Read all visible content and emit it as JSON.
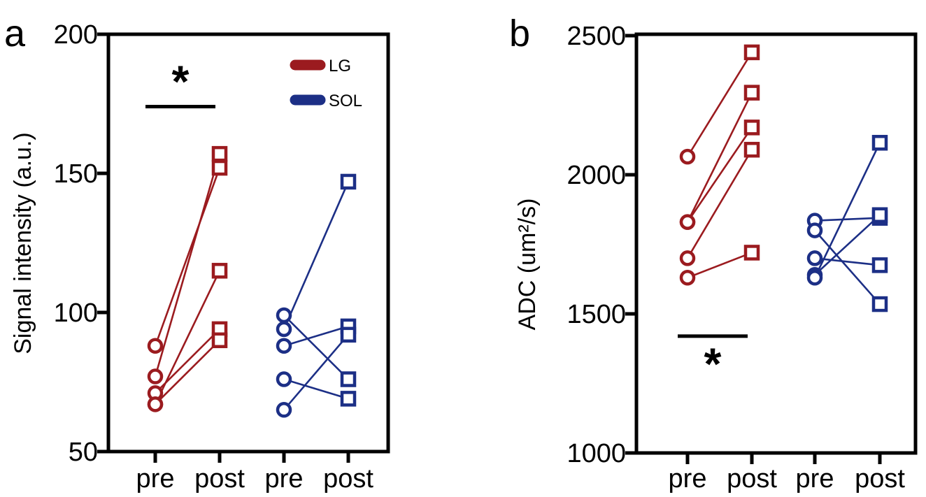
{
  "colors": {
    "LG": "#9b1b1f",
    "SOL": "#1c2f86",
    "axis": "#000000"
  },
  "chart_data": [
    {
      "type": "scatter",
      "panel": "a",
      "title": "",
      "xlabel": "",
      "ylabel": "Signal intensity (a.u.)",
      "ylim": [
        50,
        200
      ],
      "yticks": [
        50,
        100,
        150,
        200
      ],
      "categories": [
        "pre",
        "post",
        "pre",
        "post"
      ],
      "series": [
        {
          "name": "LG",
          "color_key": "LG",
          "pairs": [
            [
              88,
              152
            ],
            [
              77,
              157
            ],
            [
              71,
              94
            ],
            [
              67,
              115
            ],
            [
              67,
              90
            ]
          ]
        },
        {
          "name": "SOL",
          "color_key": "SOL",
          "pairs": [
            [
              99,
              76
            ],
            [
              94,
              147
            ],
            [
              88,
              95
            ],
            [
              76,
              69
            ],
            [
              65,
              92
            ]
          ]
        }
      ],
      "significance": {
        "label": "*",
        "position": "above",
        "between": [
          "LG pre",
          "LG post"
        ],
        "bar_value": 174,
        "star_value": 183
      },
      "legend": {
        "placement": "top-right",
        "entries": [
          "LG",
          "SOL"
        ]
      }
    },
    {
      "type": "scatter",
      "panel": "b",
      "title": "",
      "xlabel": "",
      "ylabel": "ADC (um²/s)",
      "ylim": [
        1000,
        2500
      ],
      "yticks": [
        1000,
        1500,
        2000,
        2500
      ],
      "categories": [
        "pre",
        "post",
        "pre",
        "post"
      ],
      "series": [
        {
          "name": "LG",
          "color_key": "LG",
          "pairs": [
            [
              2065,
              2440
            ],
            [
              1830,
              2295
            ],
            [
              1830,
              2170
            ],
            [
              1700,
              2090
            ],
            [
              1630,
              1720
            ]
          ]
        },
        {
          "name": "SOL",
          "color_key": "SOL",
          "pairs": [
            [
              1835,
              1845
            ],
            [
              1800,
              1535
            ],
            [
              1700,
              1675
            ],
            [
              1640,
              1855
            ],
            [
              1630,
              2115
            ]
          ]
        }
      ],
      "significance": {
        "label": "*",
        "position": "below",
        "between": [
          "LG pre",
          "LG post"
        ],
        "bar_value": 1420,
        "star_value": 1320
      }
    }
  ]
}
